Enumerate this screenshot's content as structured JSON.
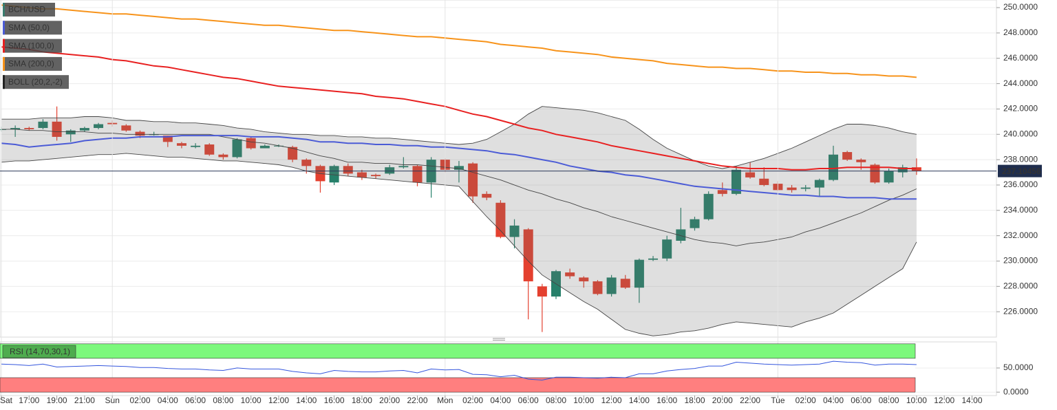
{
  "chart_data": [
    {
      "type": "candlestick",
      "title": "BCH/USD",
      "ylim": [
        224.0,
        250.6
      ],
      "yticks": [
        {
          "value": 226,
          "label": "226.0000"
        },
        {
          "value": 228,
          "label": "228.0000"
        },
        {
          "value": 230,
          "label": "230.0000"
        },
        {
          "value": 232,
          "label": "232.0000"
        },
        {
          "value": 234,
          "label": "234.0000"
        },
        {
          "value": 236,
          "label": "236.0000"
        },
        {
          "value": 238,
          "label": "238.0000"
        },
        {
          "value": 240,
          "label": "240.0000"
        },
        {
          "value": 242,
          "label": "242.0000"
        },
        {
          "value": 244,
          "label": "244.0000"
        },
        {
          "value": 246,
          "label": "246.0000"
        },
        {
          "value": 248,
          "label": "248.0000"
        },
        {
          "value": 250,
          "label": "250.0000"
        }
      ],
      "xticks": [
        "Sat",
        "17:00",
        "19:00",
        "21:00",
        "Sun",
        "02:00",
        "04:00",
        "06:00",
        "08:00",
        "10:00",
        "12:00",
        "14:00",
        "16:00",
        "18:00",
        "20:00",
        "22:00",
        "Mon",
        "02:00",
        "04:00",
        "06:00",
        "08:00",
        "10:00",
        "12:00",
        "14:00",
        "16:00",
        "18:00",
        "20:00",
        "22:00",
        "Tue",
        "02:00",
        "04:00",
        "06:00",
        "08:00",
        "10:00",
        "12:00",
        "14:00"
      ],
      "last_price": 237.10456,
      "up_color": "#26806a",
      "down_color": "#e4402f",
      "open": [
        240.4,
        240.4,
        240.5,
        240.5,
        241.0,
        240.0,
        240.3,
        240.5,
        240.9,
        240.7,
        240.2,
        240.0,
        239.9,
        239.3,
        239.0,
        239.2,
        238.4,
        238.2,
        239.7,
        238.9,
        239.1,
        239.0,
        238.0,
        237.5,
        236.2,
        237.5,
        237.0,
        236.8,
        236.9,
        237.4,
        237.5,
        236.2,
        238.0,
        237.2,
        237.7,
        235.3,
        234.6,
        231.9,
        232.5,
        228.0,
        227.2,
        229.1,
        228.7,
        228.4,
        227.4,
        228.6,
        227.9,
        230.1,
        230.2,
        231.6,
        232.6,
        233.3,
        235.6,
        235.3,
        237.0,
        236.5,
        236.1,
        235.8,
        235.7,
        235.8,
        236.4,
        238.6,
        238.0,
        237.6,
        236.2,
        237.0,
        237.4
      ],
      "high": [
        240.6,
        240.7,
        240.6,
        241.2,
        242.2,
        240.4,
        240.6,
        240.9,
        241.1,
        240.8,
        240.3,
        240.2,
        239.9,
        239.4,
        239.3,
        239.3,
        238.5,
        239.7,
        239.8,
        239.2,
        239.2,
        239.1,
        238.1,
        237.6,
        237.6,
        237.7,
        237.2,
        236.9,
        237.6,
        238.2,
        237.6,
        238.2,
        238.1,
        237.9,
        237.8,
        235.5,
        234.8,
        233.3,
        232.6,
        228.2,
        229.3,
        229.4,
        228.8,
        228.5,
        228.9,
        228.9,
        230.2,
        230.4,
        232.0,
        234.2,
        233.5,
        235.5,
        236.2,
        237.5,
        237.8,
        237.4,
        236.3,
        236.0,
        236.0,
        236.5,
        239.1,
        238.7,
        238.1,
        237.7,
        237.3,
        237.6,
        238.1
      ],
      "low": [
        240.2,
        239.8,
        240.3,
        240.4,
        239.5,
        239.4,
        240.2,
        240.4,
        240.6,
        240.2,
        239.7,
        239.9,
        239.0,
        238.9,
        238.9,
        238.3,
        238.0,
        238.1,
        238.8,
        238.9,
        239.0,
        237.8,
        236.9,
        235.4,
        236.0,
        236.7,
        236.4,
        236.5,
        236.8,
        237.3,
        235.9,
        235.0,
        237.0,
        236.2,
        234.6,
        234.8,
        231.8,
        231.0,
        225.4,
        224.4,
        227.0,
        228.6,
        227.9,
        227.3,
        227.2,
        227.8,
        226.7,
        230.0,
        230.0,
        231.4,
        232.4,
        233.2,
        235.1,
        235.2,
        236.5,
        235.9,
        235.5,
        235.4,
        235.5,
        235.1,
        236.3,
        237.9,
        237.2,
        236.1,
        236.1,
        236.6,
        236.8
      ],
      "close": [
        240.4,
        240.5,
        240.4,
        241.0,
        239.8,
        240.3,
        240.5,
        240.8,
        240.8,
        240.3,
        239.9,
        240.0,
        239.4,
        239.1,
        239.1,
        238.4,
        238.2,
        239.6,
        238.9,
        239.1,
        239.1,
        238.0,
        237.5,
        236.3,
        237.5,
        236.9,
        236.6,
        236.7,
        237.4,
        237.5,
        236.2,
        238.0,
        237.2,
        237.5,
        235.1,
        235.0,
        231.9,
        232.8,
        228.4,
        227.2,
        229.2,
        228.8,
        228.4,
        227.4,
        228.7,
        227.9,
        230.1,
        230.2,
        231.7,
        232.5,
        233.3,
        235.3,
        235.3,
        237.2,
        236.6,
        236.0,
        235.6,
        235.6,
        235.8,
        236.4,
        238.4,
        238.0,
        237.8,
        236.2,
        237.1,
        237.4,
        237.1
      ],
      "boll": {
        "name": "BOLL (20,2,-2)",
        "color": "#444444",
        "upper": [
          241.2,
          241.2,
          241.2,
          241.3,
          241.3,
          241.3,
          241.4,
          241.4,
          241.3,
          241.1,
          241.1,
          241.0,
          241.0,
          240.9,
          240.9,
          240.8,
          240.7,
          240.5,
          240.4,
          240.2,
          240.1,
          240.0,
          240.0,
          239.9,
          239.9,
          239.8,
          239.8,
          239.7,
          239.7,
          239.6,
          239.5,
          239.4,
          239.3,
          239.2,
          239.3,
          239.6,
          240.2,
          240.8,
          241.6,
          242.2,
          242.1,
          242.0,
          241.9,
          241.7,
          241.4,
          241.1,
          240.4,
          239.6,
          238.9,
          238.4,
          237.9,
          237.5,
          237.3,
          237.5,
          237.8,
          238.1,
          238.5,
          238.9,
          239.4,
          239.9,
          240.4,
          240.8,
          240.8,
          240.7,
          240.5,
          240.2,
          240.0
        ],
        "middle": [
          240.4,
          240.4,
          240.3,
          240.3,
          240.2,
          240.2,
          240.2,
          240.1,
          240.1,
          240.0,
          240.0,
          240.0,
          240.0,
          240.0,
          240.0,
          240.0,
          239.8,
          239.6,
          239.4,
          239.3,
          239.1,
          238.9,
          238.6,
          238.3,
          238.1,
          237.8,
          237.8,
          237.7,
          237.7,
          237.6,
          237.6,
          237.5,
          237.4,
          237.3,
          237.0,
          236.7,
          236.4,
          236.0,
          235.6,
          235.3,
          234.9,
          234.6,
          234.2,
          233.9,
          233.5,
          233.2,
          232.9,
          232.6,
          232.3,
          232.0,
          231.7,
          231.5,
          231.4,
          231.2,
          231.4,
          231.5,
          231.7,
          231.9,
          232.3,
          232.6,
          233.0,
          233.4,
          233.8,
          234.3,
          234.8,
          235.2,
          235.7
        ],
        "lower": [
          237.8,
          237.9,
          237.9,
          238.0,
          238.1,
          238.2,
          238.3,
          238.4,
          238.4,
          238.5,
          238.4,
          238.3,
          238.2,
          238.2,
          238.1,
          238.0,
          237.9,
          237.9,
          237.8,
          237.7,
          237.6,
          237.4,
          237.1,
          236.9,
          236.8,
          236.7,
          236.6,
          236.5,
          236.4,
          236.3,
          236.2,
          236.1,
          236.0,
          235.9,
          234.7,
          233.5,
          232.4,
          231.2,
          230.0,
          228.9,
          228.2,
          227.5,
          226.8,
          226.2,
          225.4,
          224.6,
          224.3,
          224.1,
          224.2,
          224.4,
          224.5,
          224.7,
          225.0,
          225.2,
          225.1,
          225.0,
          224.9,
          224.8,
          225.2,
          225.5,
          225.9,
          226.6,
          227.3,
          228.0,
          228.7,
          229.4,
          231.5
        ]
      },
      "series": [
        {
          "name": "SMA (50,0)",
          "color": "#4b5bd6",
          "values": [
            239.3,
            239.2,
            239.0,
            239.1,
            239.2,
            239.3,
            239.5,
            239.6,
            239.7,
            239.7,
            239.8,
            239.8,
            239.8,
            239.9,
            239.9,
            239.9,
            239.9,
            239.9,
            239.8,
            239.8,
            239.8,
            239.7,
            239.6,
            239.4,
            239.4,
            239.3,
            239.3,
            239.2,
            239.2,
            239.1,
            239.1,
            239.0,
            239.0,
            238.9,
            238.8,
            238.7,
            238.5,
            238.4,
            238.2,
            238.0,
            237.8,
            237.5,
            237.3,
            237.1,
            237.0,
            236.8,
            236.7,
            236.5,
            236.3,
            236.1,
            235.9,
            235.8,
            235.7,
            235.6,
            235.5,
            235.4,
            235.3,
            235.2,
            235.2,
            235.1,
            235.1,
            235.0,
            235.0,
            235.0,
            234.9,
            234.9,
            234.9
          ]
        },
        {
          "name": "SMA (100,0)",
          "color": "#e82020",
          "values": [
            246.9,
            246.8,
            246.7,
            246.5,
            246.4,
            246.3,
            246.2,
            246.1,
            245.9,
            245.8,
            245.6,
            245.4,
            245.3,
            245.1,
            244.9,
            244.7,
            244.5,
            244.4,
            244.2,
            244.0,
            243.8,
            243.7,
            243.6,
            243.5,
            243.4,
            243.3,
            243.2,
            243.0,
            242.9,
            242.8,
            242.6,
            242.4,
            242.2,
            241.9,
            241.6,
            241.4,
            241.1,
            240.8,
            240.5,
            240.3,
            240.0,
            239.8,
            239.6,
            239.4,
            239.1,
            238.9,
            238.7,
            238.5,
            238.3,
            238.1,
            237.9,
            237.7,
            237.5,
            237.4,
            237.3,
            237.3,
            237.3,
            237.2,
            237.2,
            237.3,
            237.3,
            237.4,
            237.4,
            237.4,
            237.4,
            237.3,
            237.3
          ]
        },
        {
          "name": "SMA (200,0)",
          "color": "#f7931a",
          "values": [
            250.2,
            250.1,
            250.0,
            249.9,
            249.9,
            249.8,
            249.7,
            249.6,
            249.5,
            249.5,
            249.4,
            249.3,
            249.2,
            249.1,
            249.1,
            249.0,
            248.9,
            248.8,
            248.7,
            248.6,
            248.6,
            248.5,
            248.4,
            248.3,
            248.2,
            248.2,
            248.1,
            248.0,
            247.9,
            247.8,
            247.7,
            247.7,
            247.6,
            247.5,
            247.4,
            247.3,
            247.1,
            247.0,
            246.9,
            246.8,
            246.6,
            246.5,
            246.4,
            246.3,
            246.1,
            246.0,
            245.9,
            245.8,
            245.6,
            245.5,
            245.4,
            245.3,
            245.3,
            245.2,
            245.2,
            245.1,
            245.0,
            245.0,
            244.9,
            244.9,
            244.8,
            244.8,
            244.7,
            244.7,
            244.6,
            244.6,
            244.5
          ]
        }
      ]
    },
    {
      "type": "line",
      "title": "RSI (14,70,30,1)",
      "ylim": [
        -7,
        104
      ],
      "yticks": [
        {
          "value": 0,
          "label": "0.0000"
        },
        {
          "value": 50,
          "label": "50.0000"
        }
      ],
      "overbought_band": [
        70,
        100
      ],
      "oversold_band": [
        0,
        30
      ],
      "color": "#3355dd",
      "values": [
        58,
        57,
        55,
        58,
        52,
        53,
        54,
        55,
        54,
        53,
        51,
        51,
        49,
        48,
        48,
        46,
        45,
        50,
        48,
        48,
        48,
        43,
        40,
        38,
        45,
        43,
        42,
        42,
        44,
        45,
        40,
        48,
        46,
        47,
        37,
        36,
        32,
        35,
        27,
        25,
        31,
        31,
        30,
        29,
        31,
        30,
        38,
        38,
        44,
        47,
        49,
        54,
        54,
        62,
        60,
        58,
        57,
        56,
        57,
        58,
        64,
        62,
        61,
        56,
        58,
        58,
        57
      ]
    }
  ]
}
